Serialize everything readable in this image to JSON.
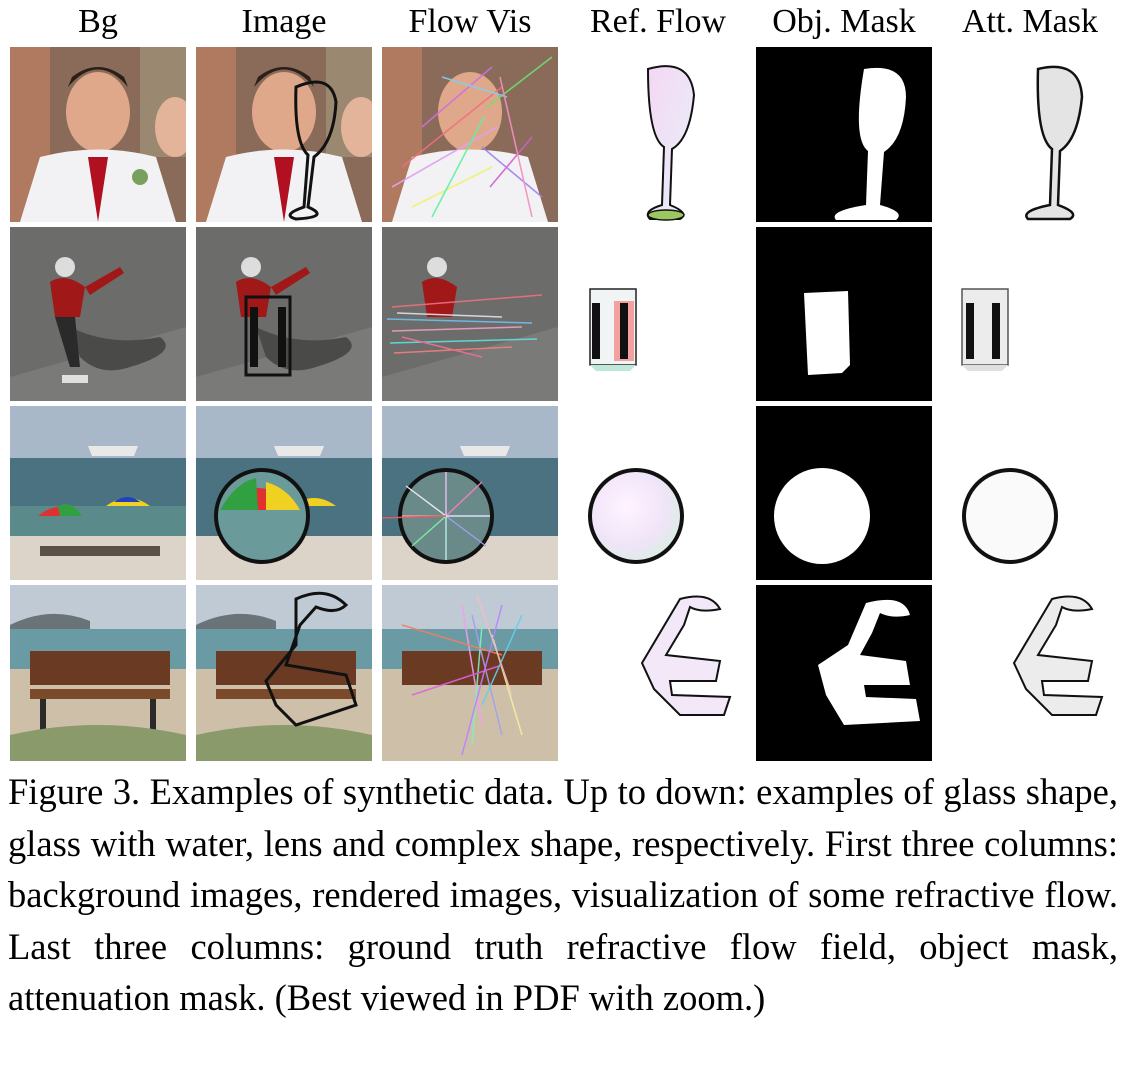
{
  "figure": {
    "columns": [
      "Bg",
      "Image",
      "Flow Vis",
      "Ref. Flow",
      "Obj. Mask",
      "Att. Mask"
    ],
    "rows": [
      "glass shape",
      "glass with water",
      "lens",
      "complex shape"
    ],
    "caption": {
      "label": "Figure 3.",
      "text": "Examples of synthetic data. Up to down: examples of glass shape, glass with water, lens and complex shape, respectively. First three columns: background images, rendered images, visualization of some refractive flow. Last three columns: ground truth refractive flow field, object mask, attenuation mask. (Best viewed in PDF with zoom.)"
    }
  }
}
